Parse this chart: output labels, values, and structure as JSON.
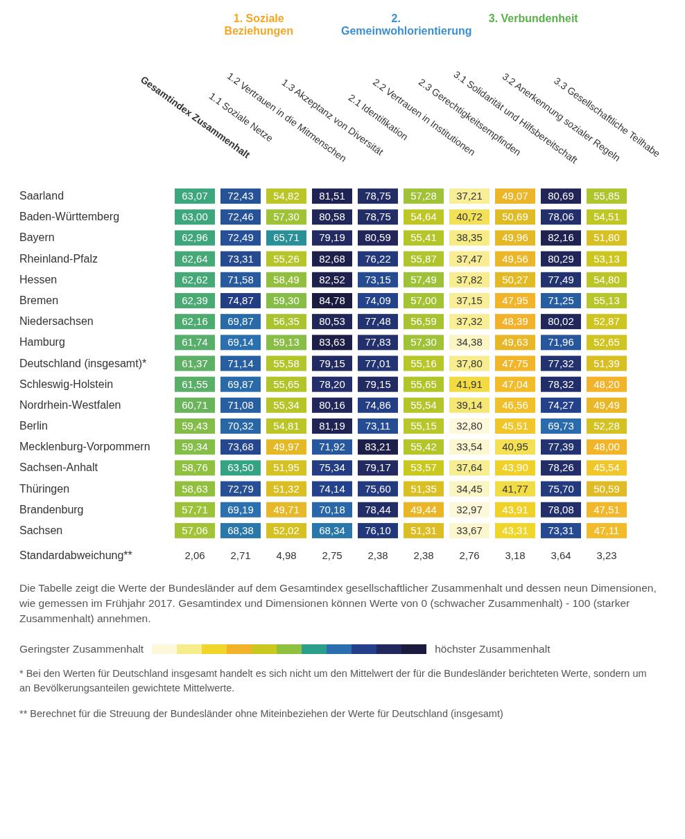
{
  "chart_data": [
    {
      "type": "heatmap",
      "categories": [
        "Gesamtindex Zusammenhalt",
        "1.1 Soziale Netze",
        "1.2 Vertrauen in die Mitmenschen",
        "1.3 Akzeptanz von Diversität",
        "2.1 Identifikation",
        "2.2 Vertrauen in Institutionen",
        "2.3 Gerechtigkeitsempfinden",
        "3.1 Solidarität und Hilfsbereitschaft",
        "3.2 Anerkennung sozialer Regeln",
        "3.3 Gesellschaftliche Teilhabe"
      ],
      "y_categories": [
        "Saarland",
        "Baden-Württemberg",
        "Bayern",
        "Rheinland-Pfalz",
        "Hessen",
        "Bremen",
        "Niedersachsen",
        "Hamburg",
        "Deutschland (insgesamt)*",
        "Schleswig-Holstein",
        "Nordrhein-Westfalen",
        "Berlin",
        "Mecklenburg-Vorpommern",
        "Sachsen-Anhalt",
        "Thüringen",
        "Brandenburg",
        "Sachsen"
      ],
      "cells": [
        [
          63.07,
          72.43,
          54.82,
          81.51,
          78.75,
          57.28,
          37.21,
          49.07,
          80.69,
          55.85
        ],
        [
          63.0,
          72.46,
          57.3,
          80.58,
          78.75,
          54.64,
          40.72,
          50.69,
          78.06,
          54.51
        ],
        [
          62.96,
          72.49,
          65.71,
          79.19,
          80.59,
          55.41,
          38.35,
          49.96,
          82.16,
          51.8
        ],
        [
          62.64,
          73.31,
          55.26,
          82.68,
          76.22,
          55.87,
          37.47,
          49.56,
          80.29,
          53.13
        ],
        [
          62.62,
          71.58,
          58.49,
          82.52,
          73.15,
          57.49,
          37.82,
          50.27,
          77.49,
          54.8
        ],
        [
          62.39,
          74.87,
          59.3,
          84.78,
          74.09,
          57.0,
          37.15,
          47.95,
          71.25,
          55.13
        ],
        [
          62.16,
          69.87,
          56.35,
          80.53,
          77.48,
          56.59,
          37.32,
          48.39,
          80.02,
          52.87
        ],
        [
          61.74,
          69.14,
          59.13,
          83.63,
          77.83,
          57.3,
          34.38,
          49.63,
          71.96,
          52.65
        ],
        [
          61.37,
          71.14,
          55.58,
          79.15,
          77.01,
          55.16,
          37.8,
          47.75,
          77.32,
          51.39
        ],
        [
          61.55,
          69.87,
          55.65,
          78.2,
          79.15,
          55.65,
          41.91,
          47.04,
          78.32,
          48.2
        ],
        [
          60.71,
          71.08,
          55.34,
          80.16,
          74.86,
          55.54,
          39.14,
          46.56,
          74.27,
          49.49
        ],
        [
          59.43,
          70.32,
          54.81,
          81.19,
          73.11,
          55.15,
          32.8,
          45.51,
          69.73,
          52.28
        ],
        [
          59.34,
          73.68,
          49.97,
          71.92,
          83.21,
          55.42,
          33.54,
          40.95,
          77.39,
          48.0
        ],
        [
          58.76,
          63.5,
          51.95,
          75.34,
          79.17,
          53.57,
          37.64,
          43.9,
          78.26,
          45.54
        ],
        [
          58.63,
          72.79,
          51.32,
          74.14,
          75.6,
          51.35,
          34.45,
          41.77,
          75.7,
          50.59
        ],
        [
          57.71,
          69.19,
          49.71,
          70.18,
          78.44,
          49.44,
          32.97,
          43.91,
          78.08,
          47.51
        ],
        [
          57.06,
          68.38,
          52.02,
          68.34,
          76.1,
          51.31,
          33.67,
          43.31,
          73.31,
          47.11
        ]
      ],
      "cell_labels": [
        [
          "63,07",
          "72,43",
          "54,82",
          "81,51",
          "78,75",
          "57,28",
          "37,21",
          "49,07",
          "80,69",
          "55,85"
        ],
        [
          "63,00",
          "72,46",
          "57,30",
          "80,58",
          "78,75",
          "54,64",
          "40,72",
          "50,69",
          "78,06",
          "54,51"
        ],
        [
          "62,96",
          "72,49",
          "65,71",
          "79,19",
          "80,59",
          "55,41",
          "38,35",
          "49,96",
          "82,16",
          "51,80"
        ],
        [
          "62,64",
          "73,31",
          "55,26",
          "82,68",
          "76,22",
          "55,87",
          "37,47",
          "49,56",
          "80,29",
          "53,13"
        ],
        [
          "62,62",
          "71,58",
          "58,49",
          "82,52",
          "73,15",
          "57,49",
          "37,82",
          "50,27",
          "77,49",
          "54,80"
        ],
        [
          "62,39",
          "74,87",
          "59,30",
          "84,78",
          "74,09",
          "57,00",
          "37,15",
          "47,95",
          "71,25",
          "55,13"
        ],
        [
          "62,16",
          "69,87",
          "56,35",
          "80,53",
          "77,48",
          "56,59",
          "37,32",
          "48,39",
          "80,02",
          "52,87"
        ],
        [
          "61,74",
          "69,14",
          "59,13",
          "83,63",
          "77,83",
          "57,30",
          "34,38",
          "49,63",
          "71,96",
          "52,65"
        ],
        [
          "61,37",
          "71,14",
          "55,58",
          "79,15",
          "77,01",
          "55,16",
          "37,80",
          "47,75",
          "77,32",
          "51,39"
        ],
        [
          "61,55",
          "69,87",
          "55,65",
          "78,20",
          "79,15",
          "55,65",
          "41,91",
          "47,04",
          "78,32",
          "48,20"
        ],
        [
          "60,71",
          "71,08",
          "55,34",
          "80,16",
          "74,86",
          "55,54",
          "39,14",
          "46,56",
          "74,27",
          "49,49"
        ],
        [
          "59,43",
          "70,32",
          "54,81",
          "81,19",
          "73,11",
          "55,15",
          "32,80",
          "45,51",
          "69,73",
          "52,28"
        ],
        [
          "59,34",
          "73,68",
          "49,97",
          "71,92",
          "83,21",
          "55,42",
          "33,54",
          "40,95",
          "77,39",
          "48,00"
        ],
        [
          "58,76",
          "63,50",
          "51,95",
          "75,34",
          "79,17",
          "53,57",
          "37,64",
          "43,90",
          "78,26",
          "45,54"
        ],
        [
          "58,63",
          "72,79",
          "51,32",
          "74,14",
          "75,60",
          "51,35",
          "34,45",
          "41,77",
          "75,70",
          "50,59"
        ],
        [
          "57,71",
          "69,19",
          "49,71",
          "70,18",
          "78,44",
          "49,44",
          "32,97",
          "43,91",
          "78,08",
          "47,51"
        ],
        [
          "57,06",
          "68,38",
          "52,02",
          "68,34",
          "76,10",
          "51,31",
          "33,67",
          "43,31",
          "73,31",
          "47,11"
        ]
      ],
      "annotations": [
        "1. Soziale Beziehungen",
        "2. Gemeinwohlorientierung",
        "3. Verbundenheit"
      ]
    },
    {
      "type": "heatmap",
      "categories": [
        null,
        null,
        null,
        null,
        null,
        null,
        null,
        null,
        null,
        null
      ],
      "tick_labels": "y",
      "y_categories": [
        "Standardabweichung**"
      ],
      "cells": [
        [
          2.06,
          2.71,
          4.98,
          2.75,
          2.38,
          2.38,
          2.76,
          3.18,
          3.64,
          3.23
        ]
      ],
      "cell_labels": [
        [
          "2,06",
          "2,71",
          "4,98",
          "2,75",
          "2,38",
          "2,38",
          "2,76",
          "3,18",
          "3,64",
          "3,23"
        ]
      ],
      "annotations": [
        "Die Tabelle zeigt die Werte der Bundesländer auf dem Gesamtindex gesellschaftlicher Zusammenhalt und dessen neun Dimensionen, wie gemessen im Frühjahr 2017. Gesamtindex und Dimensionen können Werte von 0 (schwacher Zusammenhalt) - 100 (starker Zusammenhalt) annehmen.",
        "Geringster Zusammenhalt",
        "höchster Zusammenhalt",
        "*  Bei den Werten für Deutschland insgesamt handelt es sich nicht um den Mittelwert der für die Bundesländer berichteten Werte, sondern um an Bevölkerungsanteilen gewichtete Mittelwerte.",
        "**  Berechnet für die Streuung der Bundesländer ohne Miteinbeziehen der Werte für Deutschland (insgesamt)"
      ]
    }
  ]
}
